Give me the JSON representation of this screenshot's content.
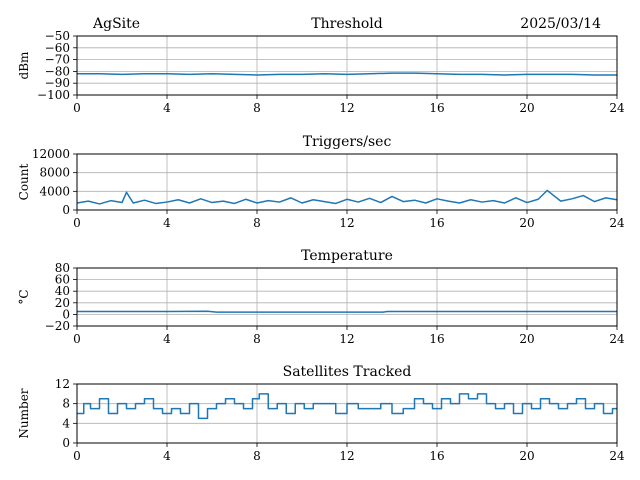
{
  "header": {
    "site": "AgSite",
    "date": "2025/03/14"
  },
  "colors": {
    "series": "#1f77b4",
    "grid": "#b0b0b0"
  },
  "chart_data": [
    {
      "id": "threshold",
      "type": "line",
      "title": "Threshold",
      "ylabel": "dBm",
      "xlabel": "",
      "xlim": [
        0,
        24
      ],
      "ylim": [
        -100,
        -50
      ],
      "xticks": [
        0,
        4,
        8,
        12,
        16,
        20,
        24
      ],
      "yticks": [
        -100,
        -90,
        -80,
        -70,
        -60,
        -50
      ],
      "ytick_labels": [
        "−100",
        "−90",
        "−80",
        "−70",
        "−60",
        "−50"
      ],
      "grid": true,
      "series": [
        {
          "x": [
            0,
            1,
            2,
            3,
            4,
            5,
            6,
            7,
            8,
            9,
            10,
            11,
            12,
            13,
            14,
            15,
            16,
            17,
            18,
            19,
            20,
            21,
            22,
            23,
            24
          ],
          "y": [
            -82,
            -82,
            -82.5,
            -82,
            -82,
            -82.5,
            -82,
            -82.5,
            -83,
            -82.5,
            -82.5,
            -82,
            -82.5,
            -82,
            -81.5,
            -81.5,
            -82,
            -82.5,
            -82.5,
            -83,
            -82.5,
            -82.5,
            -82.5,
            -83,
            -83
          ]
        }
      ]
    },
    {
      "id": "triggers",
      "type": "line",
      "title": "Triggers/sec",
      "ylabel": "Count",
      "xlabel": "",
      "xlim": [
        0,
        24
      ],
      "ylim": [
        0,
        12000
      ],
      "xticks": [
        0,
        4,
        8,
        12,
        16,
        20,
        24
      ],
      "yticks": [
        0,
        4000,
        8000,
        12000
      ],
      "ytick_labels": [
        "0",
        "4000",
        "8000",
        "12000"
      ],
      "grid": true,
      "series": [
        {
          "x": [
            0,
            0.5,
            1,
            1.5,
            2,
            2.2,
            2.5,
            3,
            3.5,
            4,
            4.5,
            5,
            5.5,
            6,
            6.5,
            7,
            7.5,
            8,
            8.5,
            9,
            9.5,
            10,
            10.5,
            11,
            11.5,
            12,
            12.5,
            13,
            13.5,
            14,
            14.5,
            15,
            15.5,
            16,
            16.5,
            17,
            17.5,
            18,
            18.5,
            19,
            19.5,
            20,
            20.5,
            20.9,
            21.5,
            22,
            22.5,
            23,
            23.5,
            24
          ],
          "y": [
            1500,
            1900,
            1300,
            2000,
            1600,
            3800,
            1500,
            2100,
            1400,
            1700,
            2200,
            1500,
            2400,
            1600,
            1900,
            1400,
            2300,
            1500,
            2000,
            1700,
            2600,
            1500,
            2200,
            1800,
            1400,
            2300,
            1700,
            2500,
            1600,
            2900,
            1800,
            2100,
            1500,
            2400,
            1900,
            1500,
            2200,
            1700,
            2000,
            1500,
            2600,
            1600,
            2300,
            4200,
            1900,
            2400,
            3100,
            1800,
            2600,
            2200
          ]
        }
      ]
    },
    {
      "id": "temperature",
      "type": "line",
      "title": "Temperature",
      "ylabel": "°C",
      "xlabel": "",
      "xlim": [
        0,
        24
      ],
      "ylim": [
        -20,
        80
      ],
      "xticks": [
        0,
        4,
        8,
        12,
        16,
        20,
        24
      ],
      "yticks": [
        -20,
        0,
        20,
        40,
        60,
        80
      ],
      "ytick_labels": [
        "−20",
        "0",
        "20",
        "40",
        "60",
        "80"
      ],
      "grid": true,
      "series": [
        {
          "x": [
            0,
            2,
            4,
            5.8,
            6.2,
            8,
            10,
            12,
            13.6,
            13.8,
            16,
            18,
            20,
            22,
            24
          ],
          "y": [
            5,
            5,
            5,
            5.5,
            4,
            4,
            4,
            4,
            4,
            5,
            5,
            5,
            5,
            5,
            5
          ]
        }
      ]
    },
    {
      "id": "satellites",
      "type": "line",
      "title": "Satellites Tracked",
      "ylabel": "Number",
      "xlabel": "",
      "xlim": [
        0,
        24
      ],
      "ylim": [
        0,
        12
      ],
      "xticks": [
        0,
        4,
        8,
        12,
        16,
        20,
        24
      ],
      "yticks": [
        0,
        4,
        8,
        12
      ],
      "ytick_labels": [
        "0",
        "4",
        "8",
        "12"
      ],
      "grid": true,
      "step": true,
      "series": [
        {
          "x": [
            0,
            0.3,
            0.6,
            1.0,
            1.4,
            1.8,
            2.2,
            2.6,
            3.0,
            3.4,
            3.8,
            4.2,
            4.6,
            5.0,
            5.4,
            5.8,
            6.2,
            6.6,
            7.0,
            7.4,
            7.8,
            8.1,
            8.5,
            8.9,
            9.3,
            9.7,
            10.1,
            10.5,
            11.0,
            11.5,
            12.0,
            12.5,
            13.0,
            13.5,
            14.0,
            14.5,
            15.0,
            15.4,
            15.8,
            16.2,
            16.6,
            17.0,
            17.4,
            17.8,
            18.2,
            18.6,
            19.0,
            19.4,
            19.8,
            20.2,
            20.6,
            21.0,
            21.4,
            21.8,
            22.2,
            22.6,
            23.0,
            23.4,
            23.8
          ],
          "y": [
            6,
            8,
            7,
            9,
            6,
            8,
            7,
            8,
            9,
            7,
            6,
            7,
            6,
            8,
            5,
            7,
            8,
            9,
            8,
            7,
            9,
            10,
            7,
            8,
            6,
            8,
            7,
            8,
            8,
            6,
            8,
            7,
            7,
            8,
            6,
            7,
            9,
            8,
            7,
            9,
            8,
            10,
            9,
            10,
            8,
            7,
            8,
            6,
            8,
            7,
            9,
            8,
            7,
            8,
            9,
            7,
            8,
            6,
            7
          ]
        }
      ]
    }
  ]
}
